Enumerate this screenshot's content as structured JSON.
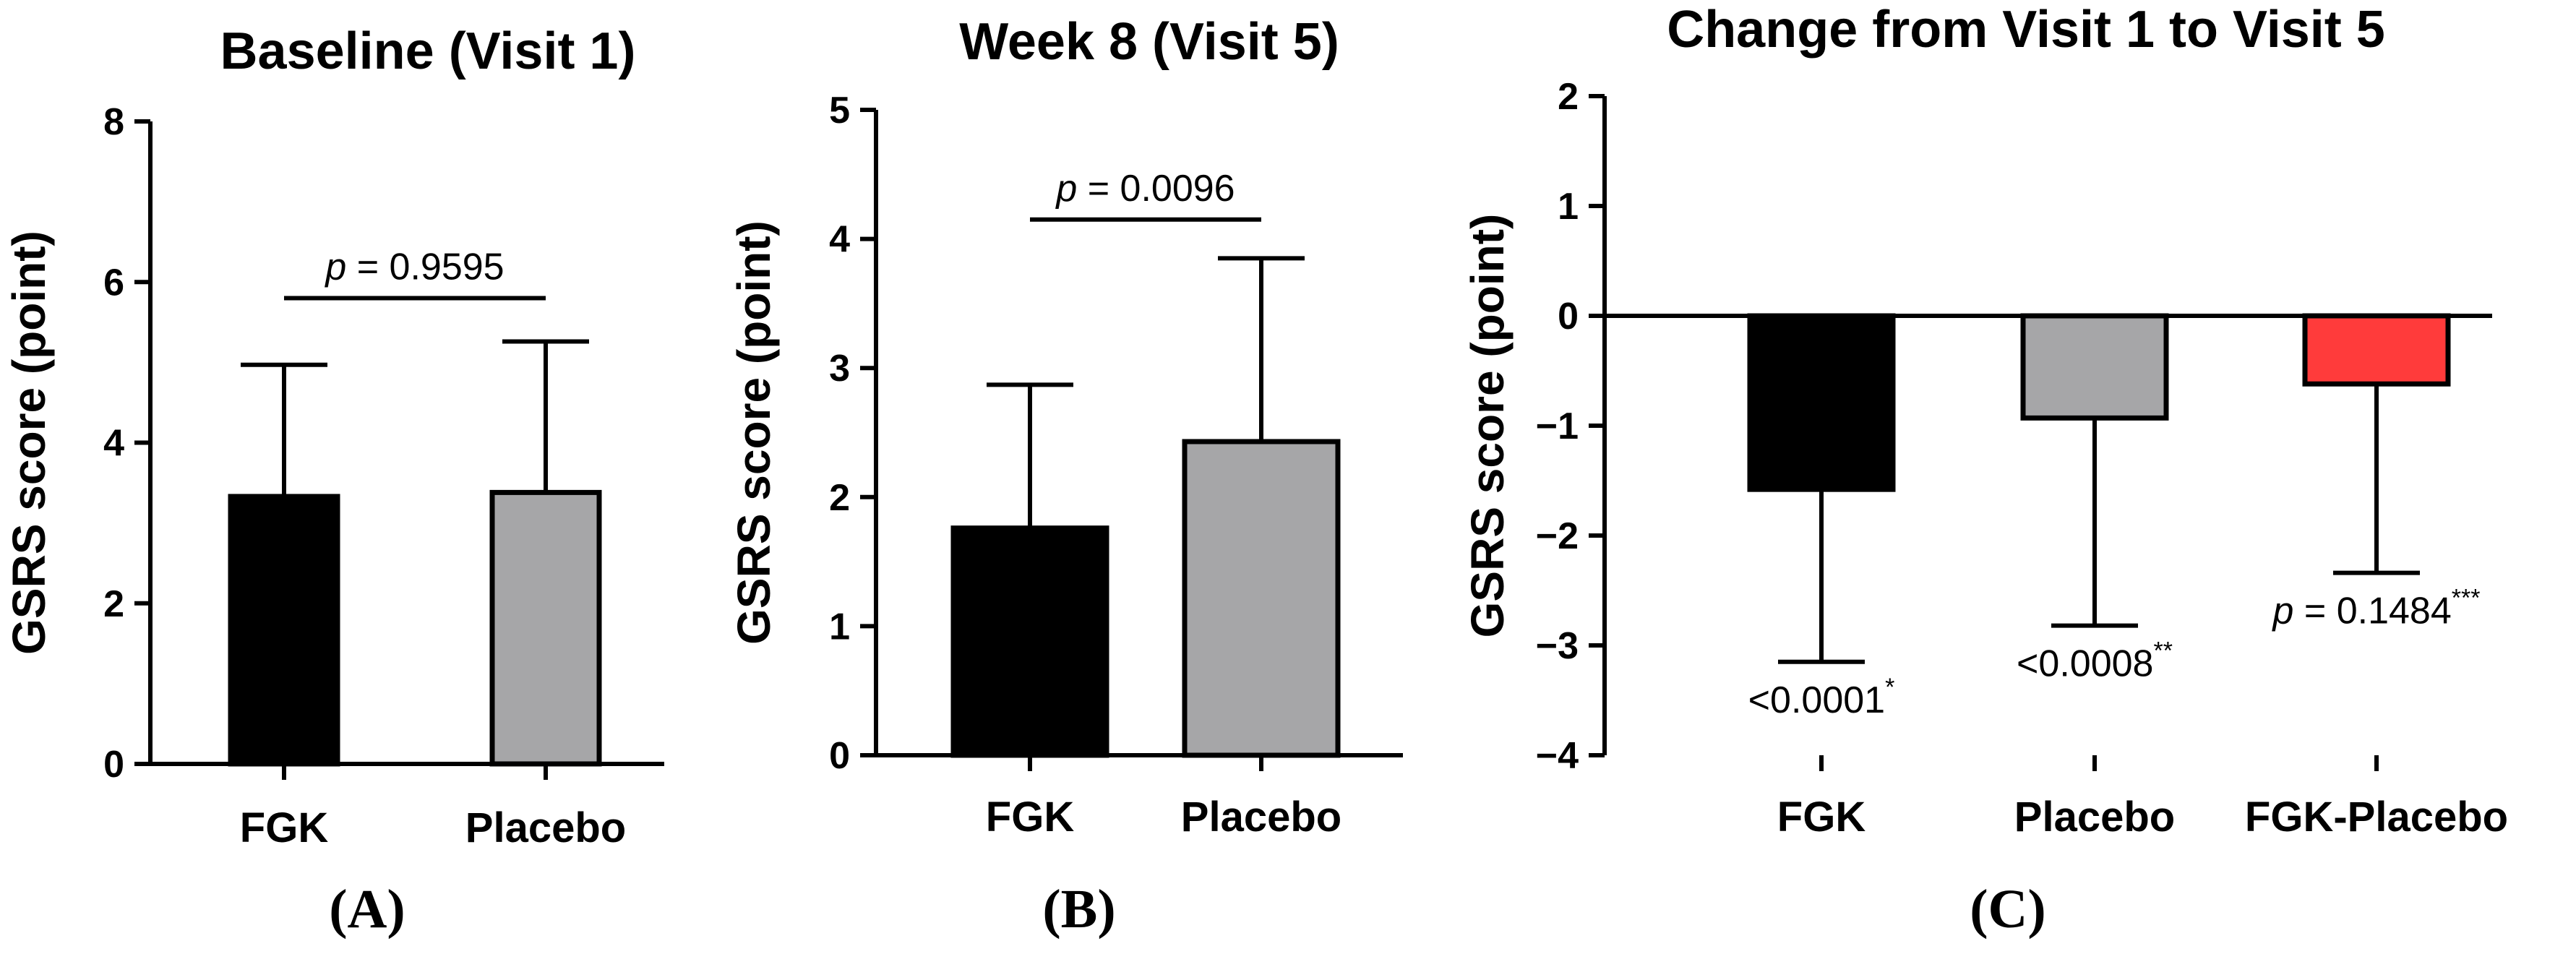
{
  "figure": {
    "panel_labels": [
      "(A)",
      "(B)",
      "(C)"
    ]
  },
  "chart_data": [
    {
      "type": "bar",
      "title": "Baseline (Visit 1)",
      "ylabel": "GSRS score (point)",
      "xlabel": "",
      "ylim": [
        0,
        8
      ],
      "yticks": [
        0,
        2,
        4,
        6,
        8
      ],
      "categories": [
        "FGK",
        "Placebo"
      ],
      "values": [
        3.33,
        3.38
      ],
      "errors": [
        1.64,
        1.88
      ],
      "colors": [
        "#000000",
        "#a6a6a8"
      ],
      "annotation": {
        "p_symbol": "p",
        "text": " = 0.9595",
        "y": 5.8
      }
    },
    {
      "type": "bar",
      "title": "Week 8 (Visit 5)",
      "ylabel": "GSRS score (point)",
      "xlabel": "",
      "ylim": [
        0,
        5
      ],
      "yticks": [
        0,
        1,
        2,
        3,
        4,
        5
      ],
      "categories": [
        "FGK",
        "Placebo"
      ],
      "values": [
        1.76,
        2.43
      ],
      "errors": [
        1.11,
        1.42
      ],
      "colors": [
        "#000000",
        "#a6a6a8"
      ],
      "annotation": {
        "p_symbol": "p",
        "text": " = 0.0096",
        "y": 4.15
      }
    },
    {
      "type": "bar",
      "title": "Change from Visit 1 to Visit 5",
      "ylabel": "GSRS score (point)",
      "xlabel": "",
      "ylim": [
        -4,
        2
      ],
      "yticks": [
        -4,
        -3,
        -2,
        -1,
        0,
        1,
        2
      ],
      "ytick_labels": [
        "−4",
        "−3",
        "−2",
        "−1",
        "0",
        "1",
        "2"
      ],
      "categories": [
        "FGK",
        "Placebo",
        "FGK-Placebo"
      ],
      "values": [
        -1.58,
        -0.93,
        -0.62
      ],
      "errors": [
        1.57,
        1.89,
        1.72
      ],
      "colors": [
        "#000000",
        "#a6a6a8",
        "#ff3b3b"
      ],
      "bar_annotations": [
        {
          "prefix": "",
          "text": "<0.0001",
          "sup": "*"
        },
        {
          "prefix": "",
          "text": "<0.0008",
          "sup": "**"
        },
        {
          "prefix": "p",
          "text": " = 0.1484",
          "sup": "***"
        }
      ]
    }
  ]
}
